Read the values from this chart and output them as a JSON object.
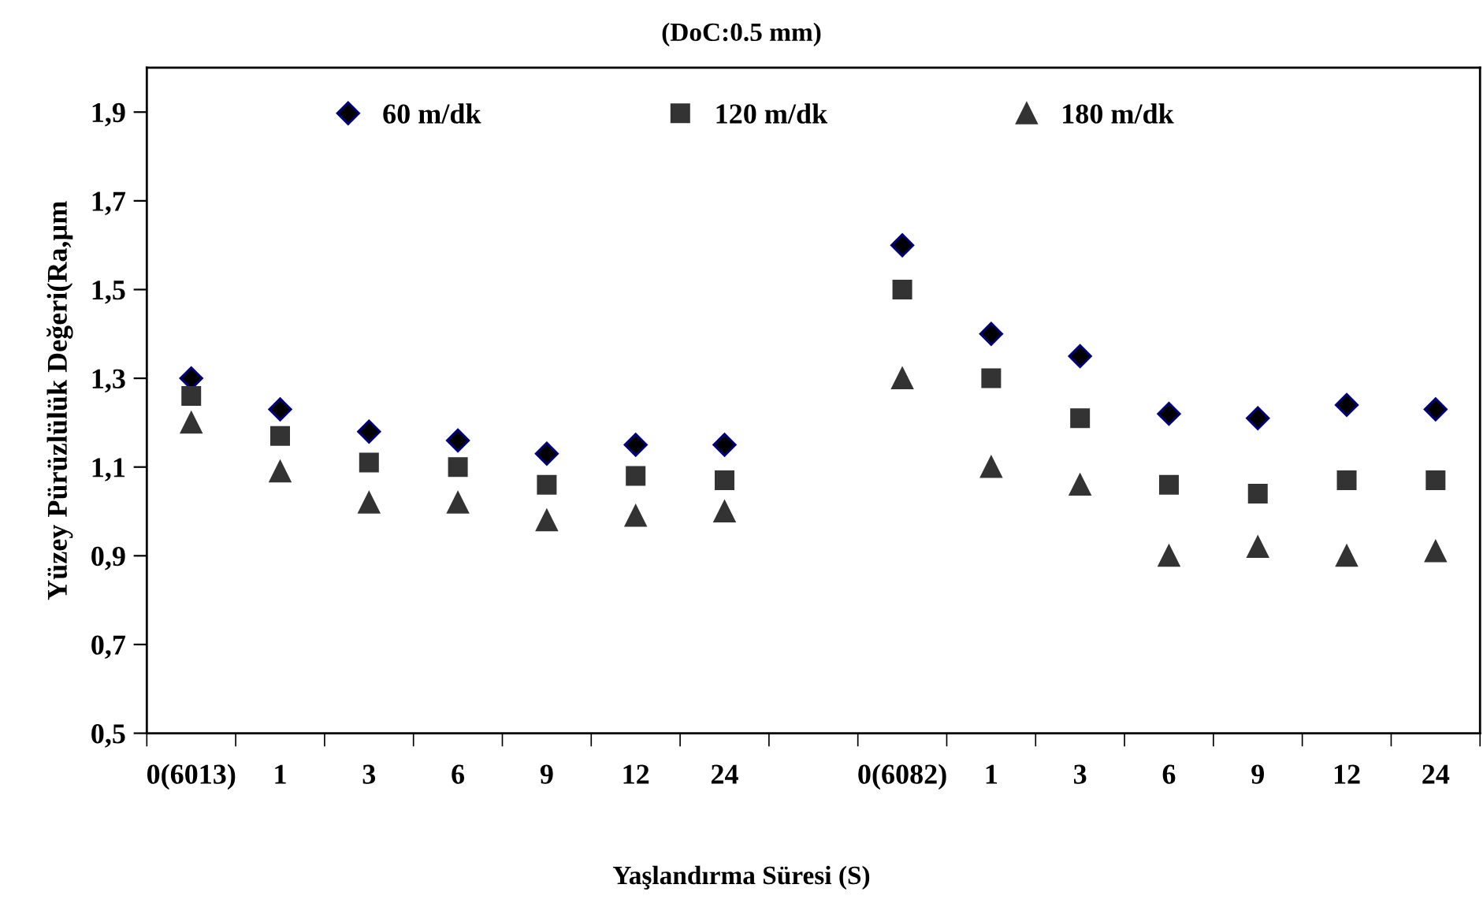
{
  "chart_data": {
    "type": "scatter",
    "title": "(DoC:0.5 mm)",
    "xlabel": "Yaşlandırma Süresi (S)",
    "ylabel": "Yüzey Pürüzlülük Değeri(Ra,µm",
    "categories": [
      "0(6013)",
      "1",
      "3",
      "6",
      "9",
      "12",
      "24",
      null,
      "0(6082)",
      "1",
      "3",
      "6",
      "9",
      "12",
      "24"
    ],
    "series": [
      {
        "name": "60 m/dk",
        "color": "#000000",
        "marker": "diamond",
        "values": [
          1.3,
          1.23,
          1.18,
          1.16,
          1.13,
          1.15,
          1.15,
          null,
          1.6,
          1.4,
          1.35,
          1.22,
          1.21,
          1.24,
          1.23
        ]
      },
      {
        "name": "120 m/dk",
        "color": "#333333",
        "marker": "square",
        "values": [
          1.26,
          1.17,
          1.11,
          1.1,
          1.06,
          1.08,
          1.07,
          null,
          1.5,
          1.3,
          1.21,
          1.06,
          1.04,
          1.07,
          1.07
        ]
      },
      {
        "name": "180 m/dk",
        "color": "#333333",
        "marker": "triangle",
        "values": [
          1.2,
          1.09,
          1.02,
          1.02,
          0.98,
          0.99,
          1.0,
          null,
          1.3,
          1.1,
          1.06,
          0.9,
          0.92,
          0.9,
          0.91
        ]
      }
    ],
    "ylim": [
      0.5,
      2.0
    ],
    "yticks": [
      {
        "value": 0.5,
        "label": "0,5"
      },
      {
        "value": 0.7,
        "label": "0,7"
      },
      {
        "value": 0.9,
        "label": "0,9"
      },
      {
        "value": 1.1,
        "label": "1,1"
      },
      {
        "value": 1.3,
        "label": "1,3"
      },
      {
        "value": 1.5,
        "label": "1,5"
      },
      {
        "value": 1.7,
        "label": "1,7"
      },
      {
        "value": 1.9,
        "label": "1,9"
      }
    ],
    "grid": false,
    "legend": "top"
  }
}
